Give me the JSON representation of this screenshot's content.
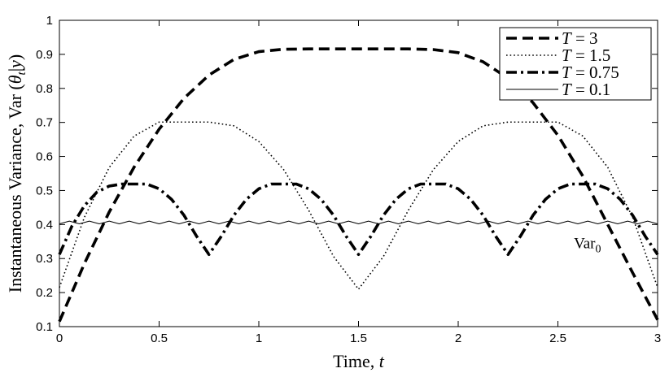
{
  "chart_data": {
    "type": "line",
    "title": "",
    "xlabel": "Time, t",
    "ylabel": "Instantaneous Variance, Var (θt|y)",
    "xlim": [
      0,
      3
    ],
    "ylim": [
      0.1,
      1
    ],
    "xticks": [
      "0",
      "0.5",
      "1",
      "1.5",
      "2",
      "2.5",
      "3"
    ],
    "yticks": [
      "0.1",
      "0.2",
      "0.3",
      "0.4",
      "0.5",
      "0.6",
      "0.7",
      "0.8",
      "0.9",
      "1"
    ],
    "grid": false,
    "legend_position": "top-right",
    "annotations": [
      {
        "text": "Var0",
        "x": 2.58,
        "y": 0.33
      }
    ],
    "series": [
      {
        "name": "T = 3",
        "style": "dashed",
        "x": [
          0,
          0.125,
          0.25,
          0.375,
          0.5,
          0.625,
          0.75,
          0.875,
          1.0,
          1.125,
          1.25,
          1.375,
          1.5,
          1.625,
          1.75,
          1.875,
          2.0,
          2.125,
          2.25,
          2.375,
          2.5,
          2.625,
          2.75,
          2.875,
          3.0
        ],
        "values": [
          0.115,
          0.285,
          0.437,
          0.569,
          0.68,
          0.771,
          0.839,
          0.885,
          0.908,
          0.915,
          0.916,
          0.916,
          0.916,
          0.916,
          0.916,
          0.914,
          0.905,
          0.878,
          0.83,
          0.758,
          0.662,
          0.542,
          0.4,
          0.258,
          0.12
        ]
      },
      {
        "name": "T = 1.5",
        "style": "dotted",
        "x": [
          0,
          0.125,
          0.25,
          0.375,
          0.5,
          0.625,
          0.75,
          0.875,
          1.0,
          1.125,
          1.25,
          1.375,
          1.5,
          1.625,
          1.75,
          1.875,
          2.0,
          2.125,
          2.25,
          2.375,
          2.5,
          2.625,
          2.75,
          2.875,
          3.0
        ],
        "values": [
          0.215,
          0.421,
          0.568,
          0.66,
          0.701,
          0.701,
          0.701,
          0.69,
          0.644,
          0.561,
          0.442,
          0.306,
          0.21,
          0.306,
          0.442,
          0.561,
          0.644,
          0.69,
          0.701,
          0.701,
          0.701,
          0.66,
          0.568,
          0.421,
          0.215
        ]
      },
      {
        "name": "T = 0.75",
        "style": "dashdot",
        "x": [
          0,
          0.0625,
          0.125,
          0.1875,
          0.25,
          0.3125,
          0.375,
          0.4375,
          0.5,
          0.5625,
          0.625,
          0.6875,
          0.75,
          0.8125,
          0.875,
          0.9375,
          1.0,
          1.0625,
          1.125,
          1.1875,
          1.25,
          1.3125,
          1.375,
          1.4375,
          1.5,
          1.5625,
          1.625,
          1.6875,
          1.75,
          1.8125,
          1.875,
          1.9375,
          2.0,
          2.0625,
          2.125,
          2.1875,
          2.25,
          2.3125,
          2.375,
          2.4375,
          2.5,
          2.5625,
          2.625,
          2.6875,
          2.75,
          2.8125,
          2.875,
          2.9375,
          3.0
        ],
        "values": [
          0.312,
          0.395,
          0.455,
          0.495,
          0.513,
          0.519,
          0.519,
          0.519,
          0.505,
          0.474,
          0.427,
          0.366,
          0.312,
          0.366,
          0.427,
          0.474,
          0.505,
          0.519,
          0.519,
          0.519,
          0.505,
          0.474,
          0.427,
          0.366,
          0.312,
          0.366,
          0.427,
          0.474,
          0.505,
          0.519,
          0.519,
          0.519,
          0.505,
          0.474,
          0.427,
          0.366,
          0.312,
          0.366,
          0.427,
          0.474,
          0.505,
          0.519,
          0.519,
          0.519,
          0.505,
          0.474,
          0.427,
          0.366,
          0.312
        ]
      },
      {
        "name": "T = 0.1",
        "style": "solid",
        "x": [
          0,
          0.05,
          0.1,
          0.15,
          0.2,
          0.25,
          0.3,
          0.35,
          0.4,
          0.45,
          0.5,
          0.55,
          0.6,
          0.65,
          0.7,
          0.75,
          0.8,
          0.85,
          0.9,
          0.95,
          1.0,
          1.05,
          1.1,
          1.15,
          1.2,
          1.25,
          1.3,
          1.35,
          1.4,
          1.45,
          1.5,
          1.55,
          1.6,
          1.65,
          1.7,
          1.75,
          1.8,
          1.85,
          1.9,
          1.95,
          2.0,
          2.05,
          2.1,
          2.15,
          2.2,
          2.25,
          2.3,
          2.35,
          2.4,
          2.45,
          2.5,
          2.55,
          2.6,
          2.65,
          2.7,
          2.75,
          2.8,
          2.85,
          2.9,
          2.95,
          3.0
        ],
        "values": [
          0.402,
          0.41,
          0.402,
          0.41,
          0.402,
          0.41,
          0.402,
          0.41,
          0.402,
          0.41,
          0.402,
          0.41,
          0.402,
          0.41,
          0.402,
          0.41,
          0.402,
          0.41,
          0.402,
          0.41,
          0.402,
          0.41,
          0.402,
          0.41,
          0.402,
          0.41,
          0.402,
          0.41,
          0.402,
          0.41,
          0.402,
          0.41,
          0.402,
          0.41,
          0.402,
          0.41,
          0.402,
          0.41,
          0.402,
          0.41,
          0.402,
          0.41,
          0.402,
          0.41,
          0.402,
          0.41,
          0.402,
          0.41,
          0.402,
          0.41,
          0.402,
          0.41,
          0.402,
          0.41,
          0.402,
          0.41,
          0.402,
          0.41,
          0.402,
          0.41,
          0.402
        ]
      }
    ]
  }
}
